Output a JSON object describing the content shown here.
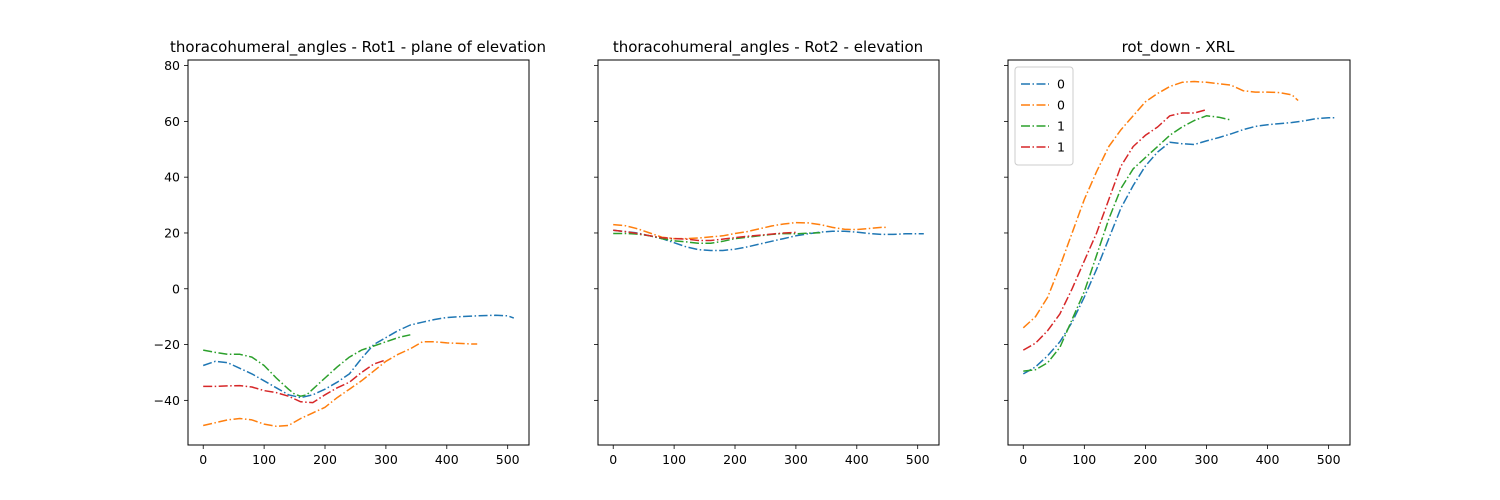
{
  "figure": {
    "colors": {
      "blue": "#1f77b4",
      "orange": "#ff7f0e",
      "green": "#2ca02c",
      "red": "#d62728"
    },
    "line_style": "dash-dot",
    "shared_y": true
  },
  "chart_data": [
    {
      "type": "line",
      "title": "thoracohumeral_angles - Rot1 - plane of elevation",
      "xlabel": "",
      "ylabel": "",
      "xlim": [
        -25,
        535
      ],
      "ylim": [
        -56,
        82
      ],
      "xticks": [
        0,
        100,
        200,
        300,
        400,
        500
      ],
      "yticks": [
        -40,
        -20,
        0,
        20,
        40,
        60,
        80
      ],
      "grid": false,
      "legend": null,
      "series": [
        {
          "color": "#1f77b4",
          "x": [
            0,
            20,
            40,
            60,
            80,
            100,
            120,
            140,
            160,
            180,
            200,
            220,
            240,
            260,
            280,
            300,
            320,
            340,
            360,
            380,
            400,
            420,
            440,
            460,
            480,
            500,
            510
          ],
          "y": [
            -27.5,
            -26,
            -26.5,
            -28.5,
            -30.5,
            -33,
            -35.5,
            -38,
            -39,
            -38,
            -36,
            -33.5,
            -30.5,
            -25,
            -20,
            -17.5,
            -15,
            -13,
            -12,
            -11,
            -10.3,
            -10,
            -9.8,
            -9.6,
            -9.5,
            -9.7,
            -10.5
          ]
        },
        {
          "color": "#ff7f0e",
          "x": [
            0,
            20,
            40,
            60,
            80,
            100,
            120,
            140,
            160,
            180,
            200,
            220,
            240,
            260,
            280,
            300,
            320,
            340,
            360,
            380,
            400,
            420,
            440,
            450
          ],
          "y": [
            -49,
            -48,
            -47,
            -46.5,
            -47,
            -48.5,
            -49.3,
            -49,
            -46.5,
            -44.5,
            -42.5,
            -39,
            -36,
            -33,
            -29.5,
            -26,
            -23.5,
            -21.5,
            -19,
            -19,
            -19.4,
            -19.6,
            -19.8,
            -19.8
          ]
        },
        {
          "color": "#2ca02c",
          "x": [
            0,
            20,
            40,
            60,
            80,
            100,
            120,
            140,
            150,
            160,
            170,
            180,
            200,
            220,
            240,
            260,
            280,
            300,
            320,
            340
          ],
          "y": [
            -22,
            -22.8,
            -23.5,
            -23.5,
            -24.5,
            -27.5,
            -32,
            -36,
            -37.8,
            -38.5,
            -38,
            -36,
            -32,
            -28,
            -24.5,
            -22,
            -20.5,
            -19,
            -17.5,
            -16.5
          ]
        },
        {
          "color": "#d62728",
          "x": [
            0,
            20,
            40,
            60,
            80,
            100,
            120,
            140,
            160,
            180,
            200,
            220,
            240,
            260,
            280,
            300
          ],
          "y": [
            -35,
            -35,
            -34.8,
            -34.7,
            -35.2,
            -36.5,
            -37.2,
            -38.5,
            -40.5,
            -40.8,
            -38,
            -35.5,
            -33.5,
            -30,
            -27,
            -25.5
          ]
        }
      ]
    },
    {
      "type": "line",
      "title": "thoracohumeral_angles - Rot2 - elevation",
      "xlabel": "",
      "ylabel": "",
      "xlim": [
        -25,
        535
      ],
      "ylim": [
        -56,
        82
      ],
      "xticks": [
        0,
        100,
        200,
        300,
        400,
        500
      ],
      "yticks": [
        -40,
        -20,
        0,
        20,
        40,
        60,
        80
      ],
      "grid": false,
      "legend": null,
      "series": [
        {
          "color": "#1f77b4",
          "x": [
            0,
            20,
            40,
            60,
            80,
            100,
            120,
            140,
            160,
            180,
            200,
            220,
            240,
            260,
            280,
            300,
            320,
            340,
            360,
            380,
            400,
            420,
            440,
            460,
            480,
            500,
            510
          ],
          "y": [
            21,
            20.5,
            20,
            19,
            18,
            16.5,
            15,
            14,
            13.7,
            13.7,
            14.2,
            15,
            16,
            17,
            18,
            19,
            19.7,
            20.3,
            20.6,
            20.6,
            20.3,
            19.8,
            19.5,
            19.5,
            19.7,
            19.7,
            19.7
          ]
        },
        {
          "color": "#ff7f0e",
          "x": [
            0,
            20,
            40,
            60,
            80,
            100,
            120,
            140,
            160,
            180,
            200,
            220,
            240,
            260,
            280,
            300,
            320,
            340,
            360,
            380,
            400,
            420,
            440,
            450
          ],
          "y": [
            23,
            22.6,
            21.5,
            20,
            18.5,
            18,
            18,
            18.2,
            18.6,
            19,
            19.8,
            20.5,
            21.5,
            22.5,
            23.2,
            23.7,
            23.6,
            23,
            22,
            21.3,
            21.2,
            21.6,
            22,
            22
          ]
        },
        {
          "color": "#2ca02c",
          "x": [
            0,
            20,
            40,
            60,
            80,
            100,
            120,
            140,
            160,
            180,
            200,
            220,
            240,
            260,
            280,
            300,
            320,
            340
          ],
          "y": [
            19.8,
            19.8,
            19.6,
            19,
            18,
            17.2,
            16.8,
            16.3,
            16.3,
            17,
            18,
            18.5,
            19,
            19.5,
            19.8,
            19.7,
            19.9,
            20.1
          ]
        },
        {
          "color": "#d62728",
          "x": [
            0,
            20,
            40,
            60,
            80,
            100,
            120,
            140,
            160,
            180,
            200,
            220,
            240,
            260,
            280,
            300
          ],
          "y": [
            21,
            20.5,
            19.8,
            19,
            18.3,
            18,
            17.8,
            17.3,
            17.3,
            17.8,
            18.3,
            18.8,
            19.2,
            19.6,
            20,
            20.2
          ]
        }
      ]
    },
    {
      "type": "line",
      "title": "rot_down - XRL",
      "xlabel": "",
      "ylabel": "",
      "xlim": [
        -25,
        535
      ],
      "ylim": [
        -56,
        82
      ],
      "xticks": [
        0,
        100,
        200,
        300,
        400,
        500
      ],
      "yticks": [
        -40,
        -20,
        0,
        20,
        40,
        60,
        80
      ],
      "grid": false,
      "legend": {
        "placement": "upper-left",
        "entries": [
          "0",
          "0",
          "1",
          "1"
        ]
      },
      "series": [
        {
          "name": "0",
          "color": "#1f77b4",
          "x": [
            0,
            20,
            40,
            60,
            80,
            100,
            120,
            140,
            160,
            180,
            200,
            220,
            240,
            260,
            280,
            300,
            320,
            340,
            360,
            380,
            400,
            420,
            440,
            460,
            480,
            500,
            510
          ],
          "y": [
            -30.5,
            -28,
            -24,
            -19,
            -12,
            -3,
            7,
            18,
            29,
            37,
            44,
            49,
            52.5,
            52,
            51.7,
            53,
            54.2,
            55.5,
            57,
            58.2,
            58.8,
            59.2,
            59.6,
            60.2,
            61,
            61.3,
            61.3
          ]
        },
        {
          "name": "0",
          "color": "#ff7f0e",
          "x": [
            0,
            20,
            40,
            60,
            80,
            100,
            120,
            140,
            160,
            180,
            200,
            220,
            240,
            260,
            280,
            300,
            320,
            340,
            360,
            380,
            400,
            420,
            440,
            450
          ],
          "y": [
            -14,
            -10,
            -3,
            8,
            20,
            32,
            42,
            51,
            57,
            62,
            67,
            70,
            72.5,
            74,
            74.3,
            74,
            73.5,
            73,
            71,
            70.5,
            70.5,
            70.3,
            69.5,
            67.5
          ]
        },
        {
          "name": "1",
          "color": "#2ca02c",
          "x": [
            0,
            20,
            40,
            60,
            80,
            100,
            120,
            140,
            160,
            180,
            200,
            220,
            240,
            260,
            280,
            300,
            320,
            340
          ],
          "y": [
            -29.5,
            -29,
            -26.5,
            -21,
            -11,
            -1,
            12,
            25,
            36,
            43,
            47,
            51,
            55,
            58,
            60.3,
            62,
            61.5,
            60.5
          ]
        },
        {
          "name": "1",
          "color": "#d62728",
          "x": [
            0,
            20,
            40,
            60,
            80,
            100,
            120,
            140,
            160,
            180,
            200,
            220,
            240,
            260,
            280,
            300
          ],
          "y": [
            -22,
            -19.5,
            -15,
            -9,
            0,
            10,
            20,
            32,
            44,
            51,
            55,
            58,
            62,
            63,
            63,
            64.2
          ]
        }
      ]
    }
  ]
}
